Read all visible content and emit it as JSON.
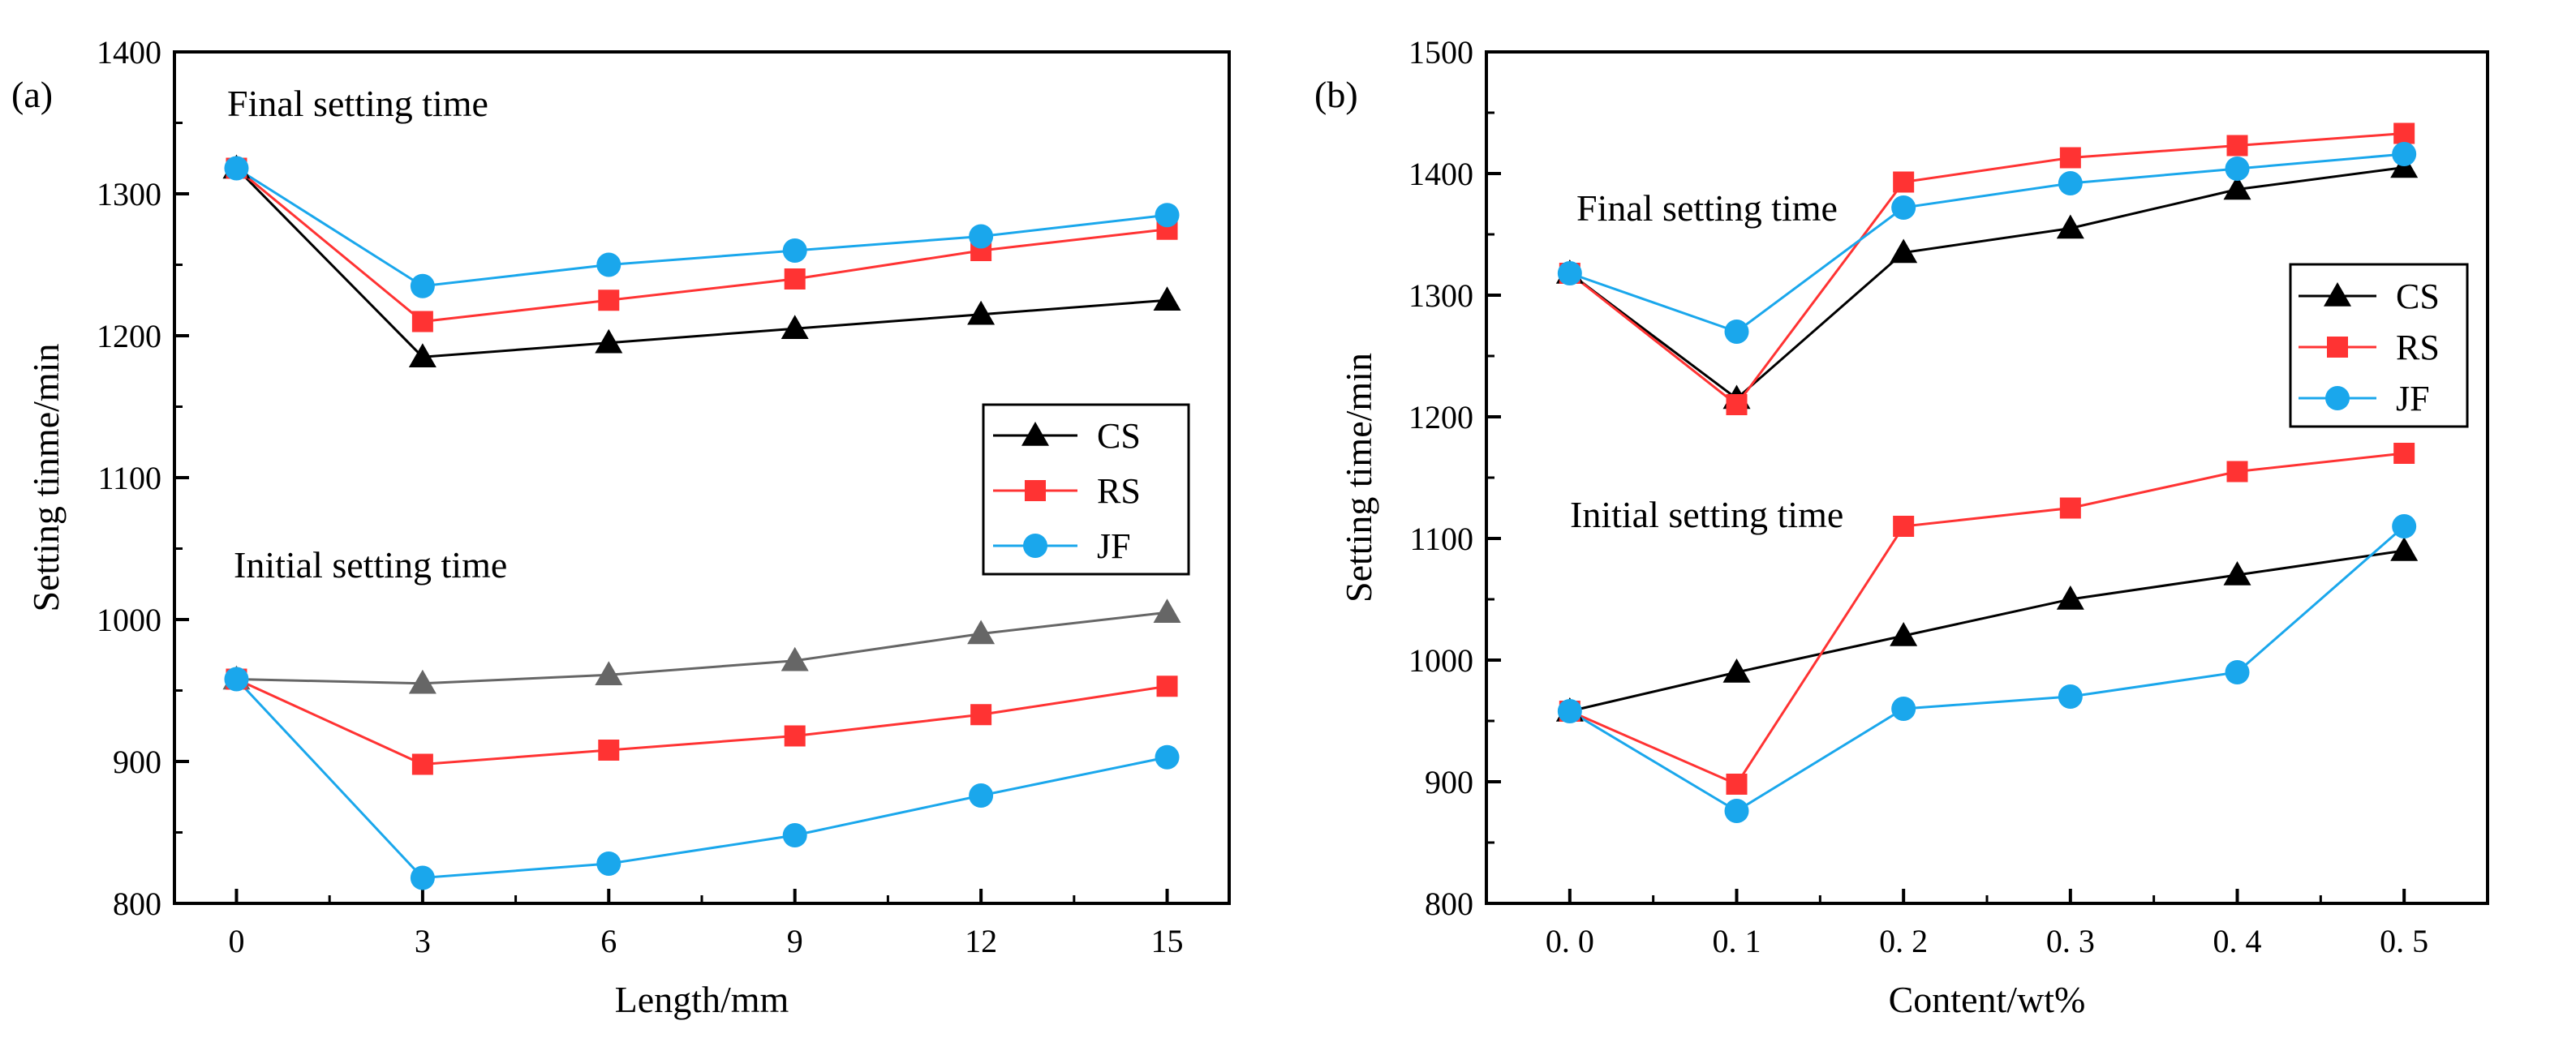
{
  "chart_data": [
    {
      "panel_label": "(a)",
      "type": "line",
      "xlabel": "Length/mm",
      "ylabel": "Setting tinme/min",
      "x": [
        0,
        3,
        6,
        9,
        12,
        15
      ],
      "xticks": [
        "0",
        "3",
        "6",
        "9",
        "12",
        "15"
      ],
      "xlim": [
        -1,
        16
      ],
      "ylim": [
        800,
        1400
      ],
      "yticks": [
        "800",
        "900",
        "1000",
        "1100",
        "1200",
        "1300",
        "1400"
      ],
      "grid": false,
      "legend": {
        "position": "center-right",
        "entries": [
          "CS",
          "RS",
          "JF"
        ]
      },
      "annotations": [
        "Final setting time",
        "Initial setting time"
      ],
      "series": [
        {
          "name": "CS",
          "group": "final",
          "values": [
            1318,
            1185,
            1195,
            1205,
            1215,
            1225
          ]
        },
        {
          "name": "RS",
          "group": "final",
          "values": [
            1318,
            1210,
            1225,
            1240,
            1260,
            1275
          ]
        },
        {
          "name": "JF",
          "group": "final",
          "values": [
            1318,
            1235,
            1250,
            1260,
            1270,
            1285
          ]
        },
        {
          "name": "CS",
          "group": "initial",
          "values": [
            958,
            955,
            961,
            971,
            990,
            1005
          ]
        },
        {
          "name": "RS",
          "group": "initial",
          "values": [
            958,
            898,
            908,
            918,
            933,
            953
          ]
        },
        {
          "name": "JF",
          "group": "initial",
          "values": [
            958,
            818,
            828,
            848,
            876,
            903
          ]
        }
      ]
    },
    {
      "panel_label": "(b)",
      "type": "line",
      "xlabel": "Content/wt%",
      "ylabel": "Setting time/min",
      "x": [
        0.0,
        0.1,
        0.2,
        0.3,
        0.4,
        0.5
      ],
      "xticks": [
        "0. 0",
        "0. 1",
        "0. 2",
        "0. 3",
        "0. 4",
        "0. 5"
      ],
      "xlim": [
        -0.05,
        0.55
      ],
      "ylim": [
        800,
        1500
      ],
      "yticks": [
        "800",
        "900",
        "1000",
        "1100",
        "1200",
        "1300",
        "1400",
        "1500"
      ],
      "grid": false,
      "legend": {
        "position": "top-right",
        "entries": [
          "CS",
          "RS",
          "JF"
        ]
      },
      "annotations": [
        "Final setting time",
        "Initial setting time"
      ],
      "series": [
        {
          "name": "CS",
          "group": "final",
          "values": [
            1318,
            1215,
            1335,
            1355,
            1387,
            1405
          ]
        },
        {
          "name": "RS",
          "group": "final",
          "values": [
            1318,
            1210,
            1393,
            1413,
            1423,
            1433
          ]
        },
        {
          "name": "JF",
          "group": "final",
          "values": [
            1318,
            1270,
            1372,
            1392,
            1404,
            1416
          ]
        },
        {
          "name": "CS",
          "group": "initial",
          "values": [
            958,
            990,
            1020,
            1050,
            1070,
            1090
          ]
        },
        {
          "name": "RS",
          "group": "initial",
          "values": [
            958,
            898,
            1110,
            1125,
            1155,
            1170
          ]
        },
        {
          "name": "JF",
          "group": "initial",
          "values": [
            958,
            876,
            960,
            970,
            990,
            1110
          ]
        }
      ]
    }
  ],
  "colors": {
    "CS": "#000000",
    "CS_initial_a": "#666666",
    "RS": "#ff3333",
    "JF": "#1aa7ec",
    "axis": "#000000"
  }
}
